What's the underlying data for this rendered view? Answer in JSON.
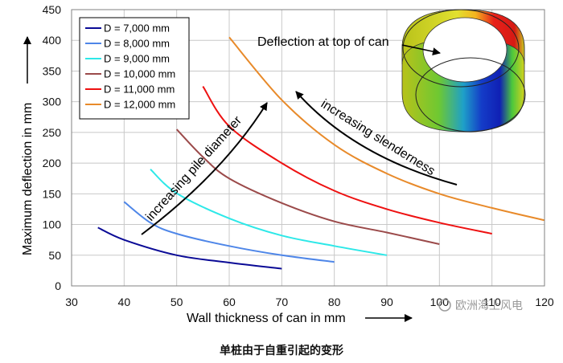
{
  "chart_data": {
    "type": "line",
    "xlabel": "Wall thickness of can in mm",
    "ylabel": "Maximum deflection in mm",
    "xlim": [
      30,
      120
    ],
    "ylim": [
      0,
      450
    ],
    "x_ticks": [
      30,
      40,
      50,
      60,
      70,
      80,
      90,
      100,
      110,
      120
    ],
    "y_ticks": [
      0,
      50,
      100,
      150,
      200,
      250,
      300,
      350,
      400,
      450
    ],
    "grid": true,
    "legend_position": "top-left",
    "series": [
      {
        "name": "D = 7,000 mm",
        "color": "#0a0a96",
        "x": [
          35,
          40,
          50,
          60,
          70
        ],
        "y": [
          95,
          75,
          50,
          38,
          28
        ]
      },
      {
        "name": "D = 8,000 mm",
        "color": "#4e86e8",
        "x": [
          40,
          45,
          50,
          60,
          70,
          80
        ],
        "y": [
          137,
          103,
          85,
          65,
          50,
          39
        ]
      },
      {
        "name": "D = 9,000 mm",
        "color": "#2de8e8",
        "x": [
          45,
          50,
          60,
          70,
          80,
          90
        ],
        "y": [
          190,
          151,
          110,
          82,
          65,
          50
        ]
      },
      {
        "name": "D = 10,000 mm",
        "color": "#9b4a4a",
        "x": [
          50,
          55,
          60,
          70,
          80,
          90,
          100
        ],
        "y": [
          255,
          210,
          175,
          135,
          105,
          87,
          68
        ]
      },
      {
        "name": "D = 11,000 mm",
        "color": "#ee1111",
        "x": [
          55,
          60,
          70,
          80,
          90,
          100,
          110
        ],
        "y": [
          325,
          260,
          200,
          155,
          125,
          103,
          85
        ]
      },
      {
        "name": "D = 12,000 mm",
        "color": "#e88a2a",
        "x": [
          60,
          70,
          80,
          90,
          100,
          110,
          120
        ],
        "y": [
          405,
          303,
          230,
          183,
          150,
          127,
          107
        ]
      }
    ],
    "annotations": [
      {
        "text": "Deflection at top of can"
      },
      {
        "text": "increasing pile diameter"
      },
      {
        "text": "increasing slenderness"
      }
    ]
  },
  "watermark": "欧洲海上风电",
  "caption": "单桩由于自重引起的变形"
}
